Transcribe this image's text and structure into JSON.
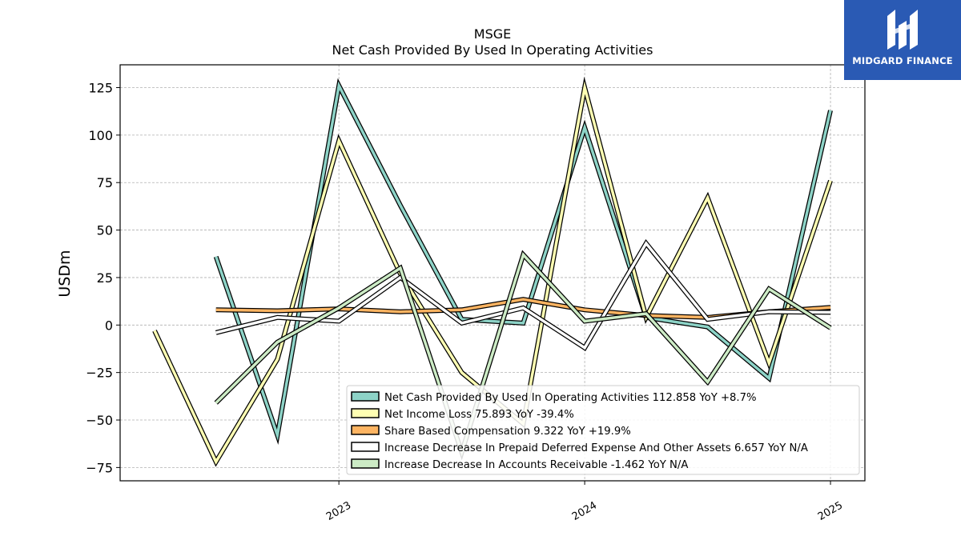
{
  "chart_data": {
    "type": "line",
    "title": "MSGE",
    "subtitle": "Net Cash Provided By Used In Operating Activities",
    "ylabel": "USDm",
    "xlabel": "",
    "ylim": [
      -82,
      137
    ],
    "xlim": [
      2022.11,
      2025.14
    ],
    "yticks": [
      125,
      100,
      75,
      50,
      25,
      0,
      -25,
      -50,
      -75
    ],
    "ytick_labels": [
      "125",
      "100",
      "75",
      "50",
      "25",
      "0",
      "−25",
      "−50",
      "−75"
    ],
    "xticks": [
      2023,
      2024,
      2025
    ],
    "xtick_labels": [
      "2023",
      "2024",
      "2025"
    ],
    "grid": true,
    "legend_position": "lower-right",
    "series": [
      {
        "name": "Net Cash Provided By Used In Operating Activities",
        "legend": "Net Cash Provided By Used In Operating Activities  112.858 YoY +8.7%",
        "color": "#8dd3c7",
        "x": [
          2022.5,
          2022.75,
          2023.0,
          2023.25,
          2023.5,
          2023.75,
          2024.0,
          2024.25,
          2024.5,
          2024.75,
          2025.0
        ],
        "values": [
          36,
          -58,
          126,
          63,
          3,
          1,
          104,
          4,
          -1,
          -28,
          113
        ]
      },
      {
        "name": "Net Income Loss",
        "legend": "Net Income Loss  75.893 YoY -39.4%",
        "color": "#ffffb3",
        "x": [
          2022.25,
          2022.5,
          2022.75,
          2023.0,
          2023.25,
          2023.5,
          2023.75,
          2024.0,
          2024.25,
          2024.5,
          2024.75,
          2025.0
        ],
        "values": [
          -3,
          -72,
          -18,
          97,
          27,
          -25,
          -52,
          125,
          4,
          67,
          -20,
          76
        ]
      },
      {
        "name": "Share Based Compensation",
        "legend": "Share Based Compensation  9.322 YoY +19.9%",
        "color": "#fdb462",
        "x": [
          2022.5,
          2022.75,
          2023.0,
          2023.25,
          2023.5,
          2023.75,
          2024.0,
          2024.25,
          2024.5,
          2024.75,
          2025.0
        ],
        "values": [
          8,
          7.5,
          8.5,
          7,
          8,
          13.5,
          8,
          5,
          4,
          7,
          9.3
        ]
      },
      {
        "name": "Increase Decrease In Prepaid Deferred Expense And Other Assets",
        "legend": "Increase Decrease In Prepaid Deferred Expense And Other Assets  6.657 YoY N/A",
        "color": "#ffffff",
        "x": [
          2022.5,
          2022.75,
          2023.0,
          2023.25,
          2023.5,
          2023.75,
          2024.0,
          2024.25,
          2024.5,
          2024.75,
          2025.0
        ],
        "values": [
          -4,
          4,
          2,
          25,
          1,
          9,
          -12,
          43,
          3,
          7,
          6.7
        ]
      },
      {
        "name": "Increase Decrease In Accounts Receivable",
        "legend": "Increase Decrease In Accounts Receivable  -1.462 YoY N/A",
        "color": "#ccebc5",
        "x": [
          2022.5,
          2022.75,
          2023.0,
          2023.25,
          2023.5,
          2023.75,
          2024.0,
          2024.25,
          2024.5,
          2024.75,
          2025.0
        ],
        "values": [
          -41,
          -9,
          9,
          30,
          -67,
          37,
          2,
          6,
          -30,
          19,
          -1.5
        ]
      }
    ]
  },
  "logo": {
    "text": "MIDGARD FINANCE",
    "background": "#2a5ab4"
  }
}
